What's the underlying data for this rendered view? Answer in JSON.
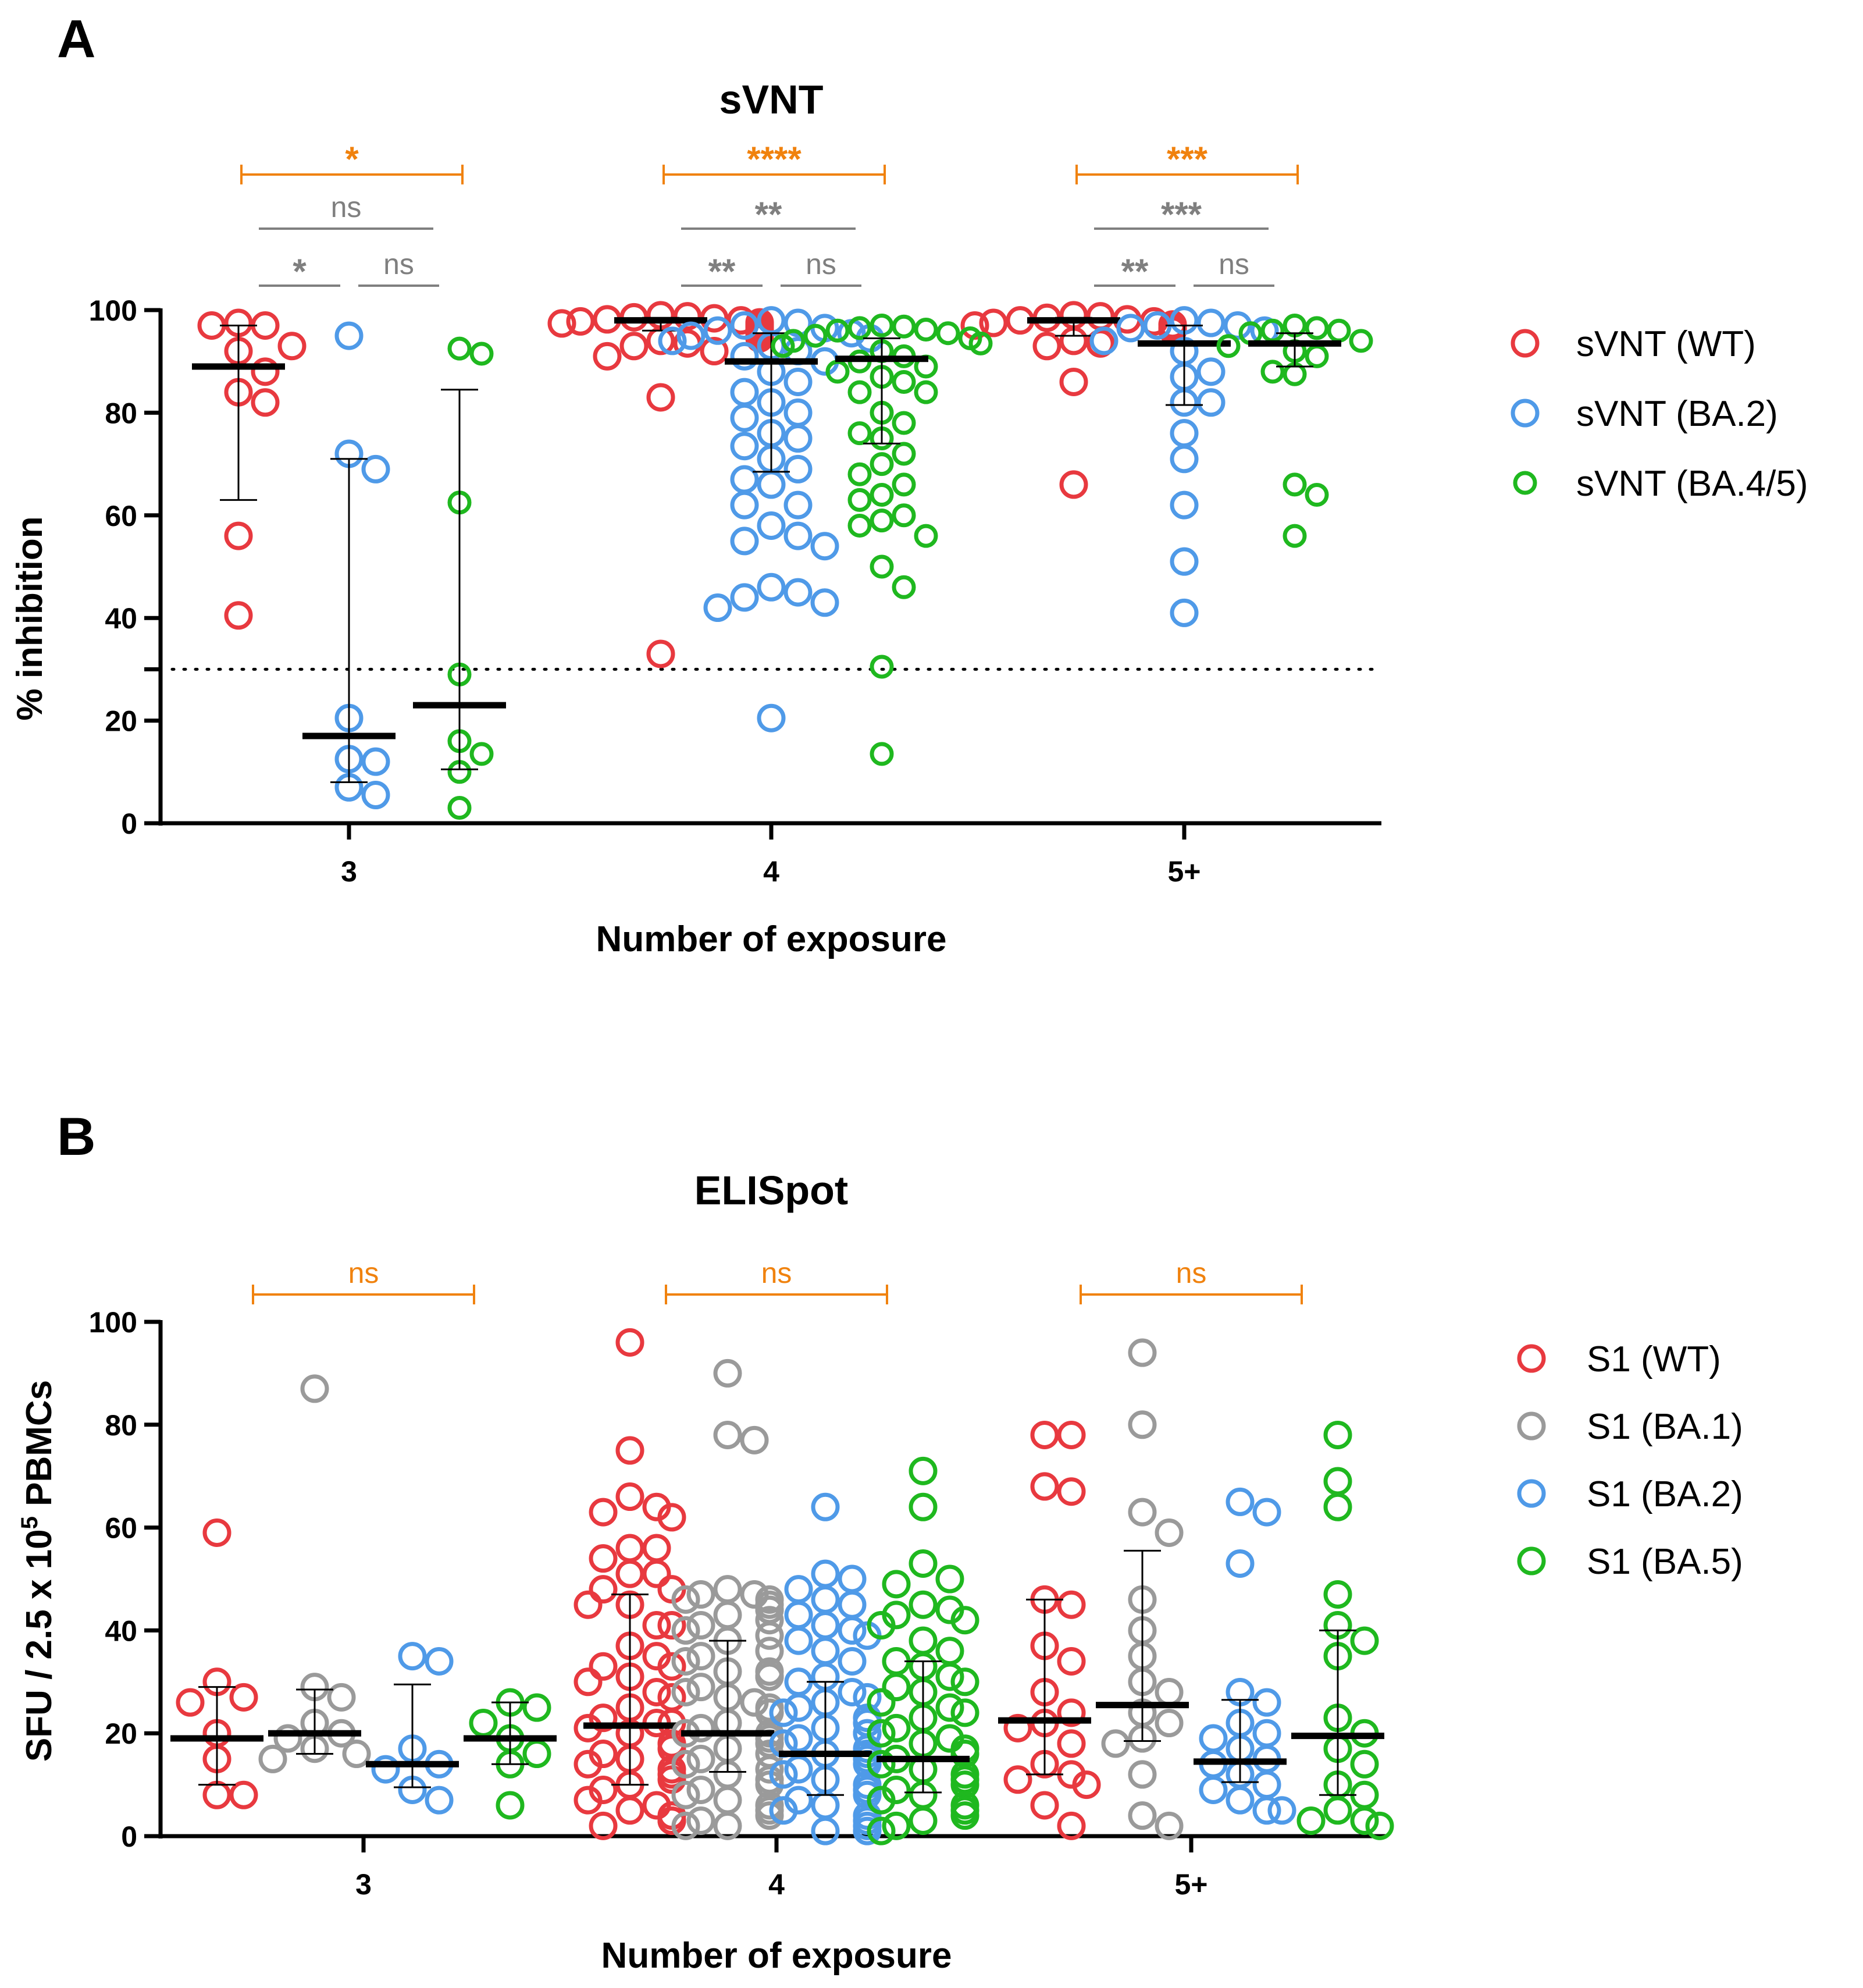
{
  "panels": {
    "a": {
      "letter": "A"
    },
    "b": {
      "letter": "B"
    }
  },
  "legend_a": [
    {
      "label": "sVNT (WT)"
    },
    {
      "label": "sVNT (BA.2)"
    },
    {
      "label": "sVNT (BA.4/5)"
    }
  ],
  "legend_b": [
    {
      "label": "S1 (WT)"
    },
    {
      "label": "S1 (BA.1)"
    },
    {
      "label": "S1 (BA.2)"
    },
    {
      "label": "S1 (BA.5)"
    }
  ],
  "chart_data": [
    {
      "type": "scatter",
      "title": "sVNT",
      "xlabel": "Number of exposure",
      "ylabel": "% inhibition",
      "ylim": [
        0,
        100
      ],
      "yticks": [
        "0",
        "20",
        "40",
        "60",
        "80",
        "100"
      ],
      "categories": [
        "3",
        "4",
        "5+"
      ],
      "threshold": 30,
      "colors": {
        "WT": "#e8393f",
        "BA2": "#4f9ae8",
        "BA45": "#1fb81f",
        "orange": "#f0820e",
        "gray": "#7f7f7f"
      },
      "series": [
        {
          "name": "sVNT (WT)",
          "color_key": "WT",
          "groups": [
            {
              "category": "3",
              "median": 89,
              "q1": 63,
              "q3": 97,
              "values": [
                97.5,
                97,
                97,
                93,
                92,
                88,
                84,
                82,
                56,
                40.5
              ]
            },
            {
              "category": "4",
              "median": 98,
              "q1": 96,
              "q3": 98.5,
              "values": [
                99,
                98.8,
                98.6,
                98.4,
                98.2,
                98,
                97.8,
                97.6,
                97.4,
                97.2,
                97,
                96.8,
                96.6,
                96.4,
                96,
                95.5,
                95,
                94.5,
                94,
                93.5,
                93,
                92,
                91,
                83,
                33
              ]
            },
            {
              "category": "5+",
              "median": 98,
              "q1": 95,
              "q3": 98.5,
              "values": [
                99,
                98.8,
                98.5,
                98.2,
                98,
                97.8,
                97.5,
                97.2,
                97,
                96.5,
                96,
                94,
                93.5,
                93,
                86,
                66
              ]
            }
          ]
        },
        {
          "name": "sVNT (BA.2)",
          "color_key": "BA2",
          "groups": [
            {
              "category": "3",
              "median": 17,
              "q1": 8,
              "q3": 71,
              "values": [
                95,
                72,
                69,
                20.5,
                12.5,
                12,
                7,
                5.5
              ]
            },
            {
              "category": "4",
              "median": 90,
              "q1": 68.5,
              "q3": 95.5,
              "values": [
                98,
                97.5,
                97,
                96.5,
                96,
                95.5,
                95,
                94.5,
                94,
                93,
                92,
                91,
                90,
                88,
                86,
                84,
                82,
                80,
                79,
                76,
                75,
                73.5,
                71,
                69,
                67,
                66,
                62,
                62,
                58,
                56,
                55,
                54,
                46,
                45,
                44,
                43,
                42,
                20.5
              ]
            },
            {
              "category": "5+",
              "median": 93.5,
              "q1": 81.5,
              "q3": 97,
              "values": [
                98,
                97.5,
                97,
                97,
                96.5,
                96,
                94,
                92,
                88,
                87,
                82,
                82,
                76,
                71,
                62,
                51,
                41
              ]
            }
          ]
        },
        {
          "name": "sVNT (BA.4/5)",
          "color_key": "BA45",
          "groups": [
            {
              "category": "3",
              "median": 23,
              "q1": 10.5,
              "q3": 84.5,
              "values": [
                92.5,
                91.5,
                62.5,
                29,
                16,
                13.5,
                10,
                3
              ]
            },
            {
              "category": "4",
              "median": 90.5,
              "q1": 74,
              "q3": 94.5,
              "values": [
                97,
                96.8,
                96.5,
                96.2,
                96,
                95.5,
                95,
                94.5,
                94,
                93.5,
                93,
                92,
                91,
                90,
                89,
                88,
                87,
                86,
                84,
                84,
                80,
                78,
                76,
                75,
                72,
                70,
                68,
                66,
                64,
                63,
                60,
                59,
                58,
                56,
                50,
                46,
                30.5,
                13.5
              ]
            },
            {
              "category": "5+",
              "median": 93.5,
              "q1": 89,
              "q3": 95.5,
              "values": [
                97,
                96.5,
                96,
                96,
                95.5,
                94,
                93,
                92,
                91,
                88,
                87.5,
                66,
                64,
                56
              ]
            }
          ]
        }
      ],
      "brackets": [
        {
          "category": "3",
          "level": "top",
          "color_key": "orange",
          "label": "*",
          "style": "star"
        },
        {
          "category": "3",
          "level": "mid",
          "color_key": "gray",
          "label": "ns",
          "style": "ns"
        },
        {
          "category": "3",
          "level": "left",
          "color_key": "gray",
          "label": "*",
          "style": "star"
        },
        {
          "category": "3",
          "level": "right",
          "color_key": "gray",
          "label": "ns",
          "style": "ns"
        },
        {
          "category": "4",
          "level": "top",
          "color_key": "orange",
          "label": "****",
          "style": "star"
        },
        {
          "category": "4",
          "level": "mid",
          "color_key": "gray",
          "label": "**",
          "style": "star"
        },
        {
          "category": "4",
          "level": "left",
          "color_key": "gray",
          "label": "**",
          "style": "star"
        },
        {
          "category": "4",
          "level": "right",
          "color_key": "gray",
          "label": "ns",
          "style": "ns"
        },
        {
          "category": "5+",
          "level": "top",
          "color_key": "orange",
          "label": "***",
          "style": "star"
        },
        {
          "category": "5+",
          "level": "mid",
          "color_key": "gray",
          "label": "***",
          "style": "star"
        },
        {
          "category": "5+",
          "level": "left",
          "color_key": "gray",
          "label": "**",
          "style": "star"
        },
        {
          "category": "5+",
          "level": "right",
          "color_key": "gray",
          "label": "ns",
          "style": "ns"
        }
      ]
    },
    {
      "type": "scatter",
      "title": "ELISpot",
      "xlabel": "Number of exposure",
      "ylabel": "SFU / 2.5 x 10",
      "ylabel_sup": "5",
      "ylabel_tail": " PBMCs",
      "ylim": [
        0,
        100
      ],
      "yticks": [
        "0",
        "20",
        "40",
        "60",
        "80",
        "100"
      ],
      "categories": [
        "3",
        "4",
        "5+"
      ],
      "colors": {
        "WT": "#e8393f",
        "BA1": "#9a9a9a",
        "BA2": "#4f9ae8",
        "BA5": "#1fb81f",
        "orange": "#f0820e"
      },
      "series": [
        {
          "name": "S1 (WT)",
          "color_key": "WT",
          "groups": [
            {
              "category": "3",
              "median": 19,
              "q1": 10,
              "q3": 29,
              "values": [
                59,
                30,
                27,
                26,
                20,
                15,
                8,
                8
              ]
            },
            {
              "category": "4",
              "median": 21.5,
              "q1": 10,
              "q3": 47,
              "values": [
                96,
                75,
                66,
                64,
                63,
                62,
                56,
                56,
                54,
                51,
                51,
                48,
                48,
                45,
                45,
                41,
                41,
                37,
                35,
                33,
                33,
                31,
                30,
                28,
                27,
                25,
                23,
                22,
                22,
                21,
                20,
                18,
                17,
                16,
                15,
                14,
                13,
                12,
                11,
                10,
                9,
                7,
                6,
                5,
                4,
                3,
                3,
                2
              ]
            },
            {
              "category": "5+",
              "median": 22.5,
              "q1": 12,
              "q3": 46,
              "values": [
                78,
                78,
                68,
                67,
                46,
                45,
                37,
                34,
                28,
                24,
                22,
                21,
                18,
                14,
                12,
                11,
                10,
                6,
                2
              ]
            }
          ]
        },
        {
          "name": "S1 (BA.1)",
          "color_key": "BA1",
          "groups": [
            {
              "category": "3",
              "median": 20,
              "q1": 16,
              "q3": 28.5,
              "values": [
                87,
                29,
                27,
                22,
                20,
                19,
                17,
                16,
                15
              ]
            },
            {
              "category": "4",
              "median": 20,
              "q1": 12.5,
              "q3": 38,
              "values": [
                90,
                78,
                77,
                48,
                47,
                47,
                46,
                46,
                45,
                44,
                44,
                43,
                42,
                41,
                40,
                39,
                38,
                36,
                35,
                34,
                32,
                32,
                31,
                31,
                29,
                28,
                27,
                26,
                25,
                24,
                22,
                21,
                20,
                20,
                19,
                18,
                17,
                16,
                15,
                14,
                13,
                12,
                11,
                10,
                9,
                8,
                7,
                6,
                5,
                4,
                3,
                2,
                2
              ]
            },
            {
              "category": "5+",
              "median": 25.5,
              "q1": 18.5,
              "q3": 55.5,
              "values": [
                94,
                80,
                63,
                59,
                46,
                40,
                35,
                30,
                28,
                24,
                22,
                19,
                18,
                12,
                4,
                2
              ]
            }
          ]
        },
        {
          "name": "S1 (BA.2)",
          "color_key": "BA2",
          "groups": [
            {
              "category": "3",
              "median": 14,
              "q1": 9.5,
              "q3": 29.5,
              "values": [
                35,
                34,
                17,
                14,
                13,
                9,
                7
              ]
            },
            {
              "category": "4",
              "median": 16,
              "q1": 8,
              "q3": 30,
              "values": [
                64,
                51,
                50,
                48,
                46,
                45,
                43,
                41,
                40,
                39,
                38,
                36,
                34,
                31,
                30,
                28,
                27,
                26,
                25,
                24,
                23,
                22,
                21,
                20,
                20,
                19,
                18,
                17,
                16,
                16,
                15,
                14,
                13,
                12,
                11,
                10,
                9,
                8,
                7,
                6,
                5,
                4,
                3,
                2,
                1,
                1
              ]
            },
            {
              "category": "5+",
              "median": 14.5,
              "q1": 10.5,
              "q3": 26.5,
              "values": [
                65,
                63,
                53,
                28,
                26,
                22,
                20,
                19,
                17,
                15,
                14,
                12,
                10,
                9,
                7,
                5,
                5
              ]
            }
          ]
        },
        {
          "name": "S1 (BA.5)",
          "color_key": "BA5",
          "groups": [
            {
              "category": "3",
              "median": 19,
              "q1": 14,
              "q3": 26,
              "values": [
                26,
                25,
                22,
                19,
                16,
                14,
                6
              ]
            },
            {
              "category": "4",
              "median": 15,
              "q1": 8.5,
              "q3": 34,
              "values": [
                71,
                64,
                53,
                50,
                49,
                45,
                44,
                43,
                42,
                41,
                38,
                36,
                34,
                33,
                31,
                30,
                29,
                28,
                26,
                25,
                24,
                23,
                21,
                20,
                19,
                18,
                17,
                16,
                15,
                14,
                13,
                12,
                11,
                10,
                9,
                8,
                7,
                6,
                5,
                4,
                3,
                2,
                1
              ]
            },
            {
              "category": "5+",
              "median": 19.5,
              "q1": 8,
              "q3": 40,
              "values": [
                78,
                69,
                64,
                47,
                41,
                38,
                35,
                23,
                20,
                17,
                14,
                10,
                8,
                5,
                3,
                3,
                2
              ]
            }
          ]
        }
      ],
      "brackets": [
        {
          "category": "3",
          "level": "top",
          "color_key": "orange",
          "label": "ns",
          "style": "ns"
        },
        {
          "category": "4",
          "level": "top",
          "color_key": "orange",
          "label": "ns",
          "style": "ns"
        },
        {
          "category": "5+",
          "level": "top",
          "color_key": "orange",
          "label": "ns",
          "style": "ns"
        }
      ]
    }
  ]
}
